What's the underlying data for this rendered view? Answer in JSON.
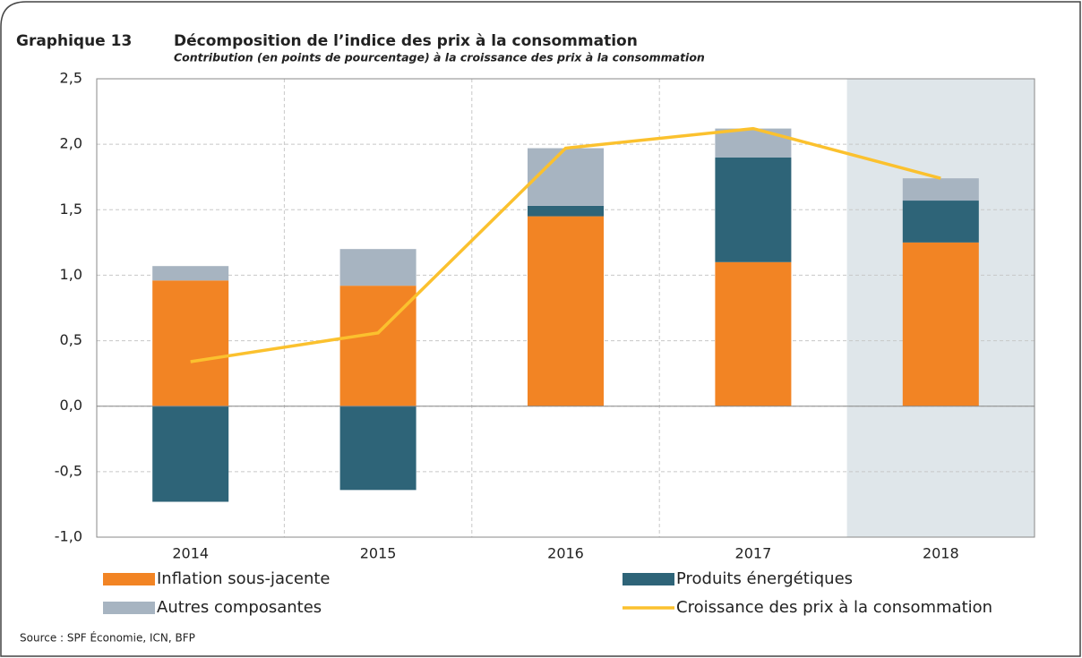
{
  "chart_data": {
    "type": "bar",
    "label": "Graphique 13",
    "title": "Décomposition de l’indice des prix à la consommation",
    "subtitle": "Contribution (en points de pourcentage) à la croissance des prix à la consommation",
    "source": "Source : SPF Économie, ICN, BFP",
    "categories": [
      "2014",
      "2015",
      "2016",
      "2017",
      "2018"
    ],
    "stacked": true,
    "series": [
      {
        "name": "Inflation sous-jacente",
        "color": "#f28424",
        "values": [
          0.96,
          0.92,
          1.45,
          1.1,
          1.25
        ]
      },
      {
        "name": "Produits énergétiques",
        "color": "#2e6478",
        "values": [
          -0.73,
          -0.64,
          0.08,
          0.8,
          0.32
        ]
      },
      {
        "name": "Autres composantes",
        "color": "#a7b4c1",
        "values": [
          0.11,
          0.28,
          0.44,
          0.22,
          0.17
        ]
      },
      {
        "name": "Croissance des prix à la consommation",
        "type": "line",
        "color": "#fbc12e",
        "values": [
          0.34,
          0.56,
          1.97,
          2.12,
          1.74
        ]
      }
    ],
    "ylim": [
      -1.0,
      2.5
    ],
    "yticks": [
      {
        "value": -1.0,
        "label": "-1,0"
      },
      {
        "value": -0.5,
        "label": "-0,5"
      },
      {
        "value": 0.0,
        "label": "0,0"
      },
      {
        "value": 0.5,
        "label": "0,5"
      },
      {
        "value": 1.0,
        "label": "1,0"
      },
      {
        "value": 1.5,
        "label": "1,5"
      },
      {
        "value": 2.0,
        "label": "2,0"
      },
      {
        "value": 2.5,
        "label": "2,5"
      }
    ],
    "grid": true,
    "shade": {
      "categories": [
        "2018"
      ],
      "color": "#dfe6ea"
    }
  }
}
